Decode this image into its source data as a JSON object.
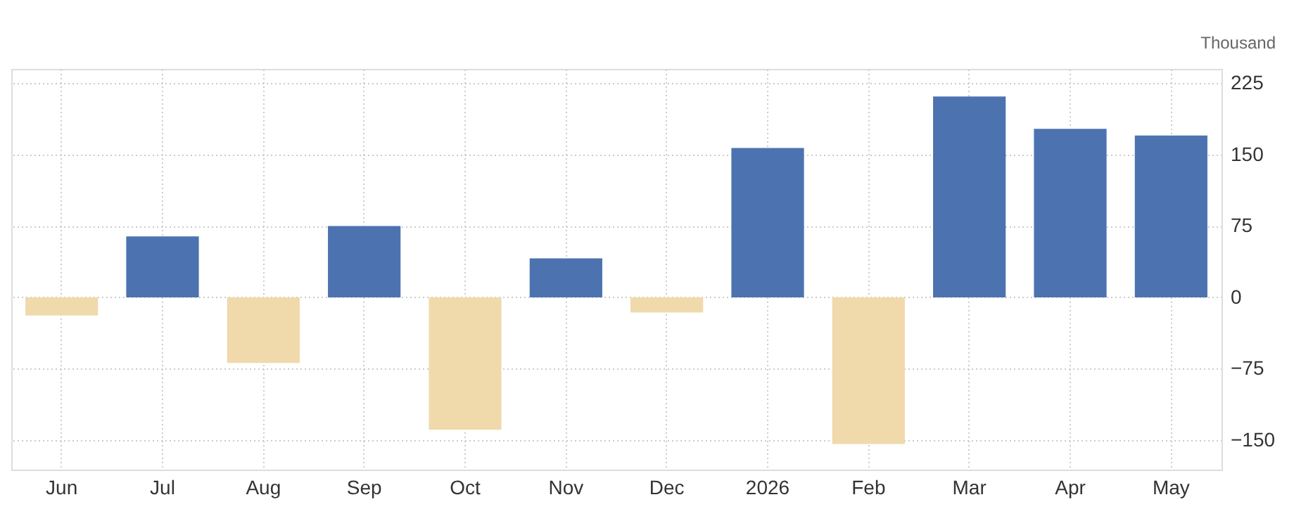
{
  "chart_data": {
    "type": "bar",
    "ylabel": "Thousand",
    "categories": [
      "Jun",
      "Jul",
      "Aug",
      "Sep",
      "Oct",
      "Nov",
      "Dec",
      "2026",
      "Feb",
      "Mar",
      "Apr",
      "May"
    ],
    "values": [
      -19,
      64,
      -69,
      75,
      -139,
      41,
      -16,
      157,
      -154,
      211,
      177,
      170
    ],
    "colors": [
      "#f0d9ab",
      "#4c73b0",
      "#f0d9ab",
      "#4c73b0",
      "#f0d9ab",
      "#4c73b0",
      "#f0d9ab",
      "#4c73b0",
      "#f0d9ab",
      "#4c73b0",
      "#4c73b0",
      "#4c73b0"
    ],
    "ylim": [
      -181,
      240
    ],
    "yticks": [
      -150,
      -75,
      0,
      75,
      150,
      225
    ],
    "grid": true
  }
}
